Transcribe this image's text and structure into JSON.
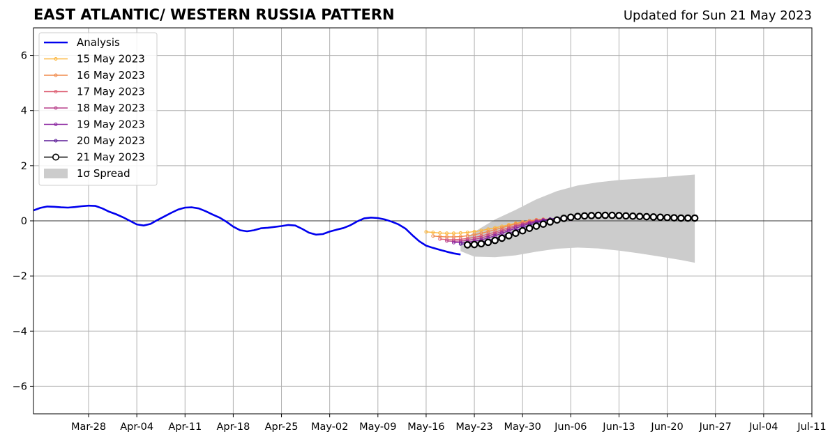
{
  "chart_data": {
    "type": "line",
    "title": "EAST ATLANTIC/ WESTERN RUSSIA PATTERN",
    "subtitle": "Updated for Sun 21 May 2023",
    "xlabel": "",
    "ylabel": "",
    "xlim": [
      "2023-03-20",
      "2023-07-11"
    ],
    "ylim": [
      -7,
      7
    ],
    "grid": true,
    "legend_position": "top-left",
    "x_ticks": [
      "Mar-28",
      "Apr-04",
      "Apr-11",
      "Apr-18",
      "Apr-25",
      "May-02",
      "May-09",
      "May-16",
      "May-23",
      "May-30",
      "Jun-06",
      "Jun-13",
      "Jun-20",
      "Jun-27",
      "Jul-04",
      "Jul-11"
    ],
    "x_tick_dates": [
      "2023-03-28",
      "2023-04-04",
      "2023-04-11",
      "2023-04-18",
      "2023-04-25",
      "2023-05-02",
      "2023-05-09",
      "2023-05-16",
      "2023-05-23",
      "2023-05-30",
      "2023-06-06",
      "2023-06-13",
      "2023-06-20",
      "2023-06-27",
      "2023-07-04",
      "2023-07-11"
    ],
    "y_ticks": [
      -6,
      -4,
      -2,
      0,
      2,
      4,
      6
    ],
    "y_tick_labels": [
      "−6",
      "−4",
      "−2",
      "0",
      "2",
      "4",
      "6"
    ],
    "analysis": {
      "name": "Analysis",
      "color": "#0000ee",
      "dates": [
        "2023-03-20",
        "2023-03-21",
        "2023-03-22",
        "2023-03-23",
        "2023-03-24",
        "2023-03-25",
        "2023-03-26",
        "2023-03-27",
        "2023-03-28",
        "2023-03-29",
        "2023-03-30",
        "2023-03-31",
        "2023-04-01",
        "2023-04-02",
        "2023-04-03",
        "2023-04-04",
        "2023-04-05",
        "2023-04-06",
        "2023-04-07",
        "2023-04-08",
        "2023-04-09",
        "2023-04-10",
        "2023-04-11",
        "2023-04-12",
        "2023-04-13",
        "2023-04-14",
        "2023-04-15",
        "2023-04-16",
        "2023-04-17",
        "2023-04-18",
        "2023-04-19",
        "2023-04-20",
        "2023-04-21",
        "2023-04-22",
        "2023-04-23",
        "2023-04-24",
        "2023-04-25",
        "2023-04-26",
        "2023-04-27",
        "2023-04-28",
        "2023-04-29",
        "2023-04-30",
        "2023-05-01",
        "2023-05-02",
        "2023-05-03",
        "2023-05-04",
        "2023-05-05",
        "2023-05-06",
        "2023-05-07",
        "2023-05-08",
        "2023-05-09",
        "2023-05-10",
        "2023-05-11",
        "2023-05-12",
        "2023-05-13",
        "2023-05-14",
        "2023-05-15",
        "2023-05-16",
        "2023-05-17",
        "2023-05-18",
        "2023-05-19",
        "2023-05-20",
        "2023-05-21"
      ],
      "values": [
        0.38,
        0.47,
        0.52,
        0.51,
        0.49,
        0.48,
        0.5,
        0.53,
        0.55,
        0.54,
        0.45,
        0.33,
        0.24,
        0.13,
        0.0,
        -0.13,
        -0.17,
        -0.11,
        0.03,
        0.16,
        0.29,
        0.41,
        0.48,
        0.49,
        0.45,
        0.35,
        0.23,
        0.12,
        -0.03,
        -0.21,
        -0.34,
        -0.38,
        -0.34,
        -0.27,
        -0.25,
        -0.22,
        -0.19,
        -0.15,
        -0.17,
        -0.29,
        -0.43,
        -0.5,
        -0.48,
        -0.39,
        -0.32,
        -0.26,
        -0.16,
        -0.02,
        0.09,
        0.12,
        0.1,
        0.05,
        -0.03,
        -0.13,
        -0.28,
        -0.52,
        -0.74,
        -0.9,
        -0.98,
        -1.05,
        -1.12,
        -1.18,
        -1.22
      ]
    },
    "forecasts": [
      {
        "name": "15 May 2023",
        "color": "#fcb63c",
        "start": "2023-05-16",
        "values": [
          -0.4,
          -0.42,
          -0.44,
          -0.45,
          -0.45,
          -0.44,
          -0.42,
          -0.39,
          -0.35,
          -0.3,
          -0.25,
          -0.2,
          -0.14,
          -0.09,
          -0.04,
          0.0,
          0.03,
          0.05
        ]
      },
      {
        "name": "16 May 2023",
        "color": "#f08a4b",
        "start": "2023-05-17",
        "values": [
          -0.55,
          -0.57,
          -0.58,
          -0.58,
          -0.57,
          -0.54,
          -0.5,
          -0.45,
          -0.39,
          -0.32,
          -0.25,
          -0.18,
          -0.11,
          -0.05,
          0.0,
          0.04,
          0.06,
          0.06
        ]
      },
      {
        "name": "17 May 2023",
        "color": "#dd5e72",
        "start": "2023-05-18",
        "values": [
          -0.66,
          -0.68,
          -0.68,
          -0.67,
          -0.64,
          -0.6,
          -0.55,
          -0.48,
          -0.41,
          -0.33,
          -0.25,
          -0.17,
          -0.1,
          -0.04,
          0.01,
          0.04,
          0.05,
          0.04
        ]
      },
      {
        "name": "18 May 2023",
        "color": "#b8408b",
        "start": "2023-05-19",
        "values": [
          -0.73,
          -0.74,
          -0.73,
          -0.71,
          -0.67,
          -0.62,
          -0.55,
          -0.47,
          -0.39,
          -0.3,
          -0.21,
          -0.13,
          -0.06,
          0.0,
          0.04,
          0.06,
          0.06,
          0.04
        ]
      },
      {
        "name": "19 May 2023",
        "color": "#8a24a0",
        "start": "2023-05-20",
        "values": [
          -0.79,
          -0.79,
          -0.77,
          -0.74,
          -0.69,
          -0.62,
          -0.54,
          -0.45,
          -0.36,
          -0.27,
          -0.18,
          -0.1,
          -0.03,
          0.02,
          0.06,
          0.08,
          0.07,
          0.05
        ]
      },
      {
        "name": "20 May 2023",
        "color": "#5a1996",
        "start": "2023-05-21",
        "values": [
          -0.84,
          -0.84,
          -0.81,
          -0.77,
          -0.71,
          -0.64,
          -0.55,
          -0.46,
          -0.36,
          -0.26,
          -0.16,
          -0.07,
          0.0,
          0.06,
          0.1,
          0.12,
          0.12,
          0.1
        ]
      }
    ],
    "latest_forecast": {
      "name": "21 May 2023",
      "color": "#000000",
      "marker": "open-circle",
      "start": "2023-05-22",
      "values": [
        -0.87,
        -0.86,
        -0.83,
        -0.78,
        -0.71,
        -0.63,
        -0.54,
        -0.45,
        -0.36,
        -0.27,
        -0.19,
        -0.12,
        -0.04,
        0.03,
        0.09,
        0.13,
        0.16,
        0.18,
        0.19,
        0.2,
        0.2,
        0.2,
        0.19,
        0.18,
        0.17,
        0.16,
        0.15,
        0.14,
        0.13,
        0.12,
        0.11,
        0.1,
        0.1,
        0.1
      ]
    },
    "spread": {
      "name": "1σ Spread",
      "color": "#cccccc",
      "dates": [
        "2023-05-21",
        "2023-05-23",
        "2023-05-26",
        "2023-05-29",
        "2023-06-01",
        "2023-06-04",
        "2023-06-07",
        "2023-06-10",
        "2023-06-13",
        "2023-06-16",
        "2023-06-19",
        "2023-06-22",
        "2023-06-24"
      ],
      "upper": [
        -0.8,
        -0.4,
        0.05,
        0.4,
        0.78,
        1.08,
        1.28,
        1.4,
        1.48,
        1.53,
        1.58,
        1.64,
        1.68
      ],
      "lower": [
        -1.1,
        -1.3,
        -1.32,
        -1.25,
        -1.12,
        -1.01,
        -0.97,
        -1.0,
        -1.08,
        -1.18,
        -1.3,
        -1.42,
        -1.52
      ]
    }
  }
}
